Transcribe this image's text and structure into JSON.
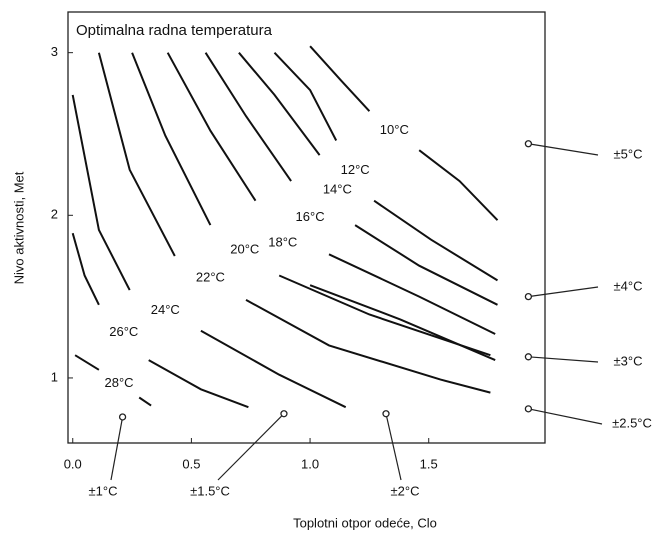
{
  "chart_data": {
    "type": "line",
    "title": "Optimalna radna temperatura",
    "x_label": "Toplotni otpor odeće, Clo",
    "y_label": "Nivo aktivnosti, Met",
    "xlim": [
      -0.02,
      1.99
    ],
    "ylim": [
      0.6,
      3.25
    ],
    "xticks": [
      {
        "value": 0,
        "label": "0.0"
      },
      0.5,
      {
        "value": 1,
        "label": "1.0"
      },
      1.5
    ],
    "yticks": [
      1,
      2,
      3
    ],
    "series": [
      {
        "name": "10°C",
        "color": "#111111",
        "x": [
          1.0,
          1.13,
          1.25,
          null,
          1.46,
          1.63,
          1.79
        ],
        "values": [
          3.04,
          2.83,
          2.64,
          null,
          2.4,
          2.21,
          1.97
        ]
      },
      {
        "name": "12°C",
        "color": "#111111",
        "x": [
          0.85,
          1.0,
          1.11,
          null,
          1.27,
          1.51,
          1.79
        ],
        "values": [
          3.0,
          2.77,
          2.46,
          null,
          2.09,
          1.85,
          1.6
        ]
      },
      {
        "name": "14°C",
        "color": "#111111",
        "x": [
          0.7,
          0.85,
          1.04,
          null,
          1.19,
          1.46,
          1.79
        ],
        "values": [
          3.0,
          2.74,
          2.37,
          null,
          1.94,
          1.69,
          1.45
        ]
      },
      {
        "name": "16°C",
        "color": "#111111",
        "x": [
          0.56,
          0.73,
          0.92,
          null,
          1.08,
          1.46,
          1.78
        ],
        "values": [
          3.0,
          2.61,
          2.21,
          null,
          1.76,
          1.5,
          1.27
        ]
      },
      {
        "name": "18°C",
        "color": "#111111",
        "x": [
          0.4,
          0.58,
          0.77,
          null,
          1.0,
          1.38,
          1.78
        ],
        "values": [
          3.0,
          2.52,
          2.09,
          null,
          1.57,
          1.36,
          1.11
        ]
      },
      {
        "name": "20°C",
        "color": "#111111",
        "x": [
          0.25,
          0.39,
          0.58,
          null,
          0.87,
          1.25,
          1.76
        ],
        "values": [
          3.0,
          2.49,
          1.94,
          null,
          1.63,
          1.39,
          1.14
        ]
      },
      {
        "name": "22°C",
        "color": "#111111",
        "x": [
          0.11,
          0.24,
          0.43,
          null,
          0.73,
          1.08,
          1.55,
          1.76
        ],
        "values": [
          3.0,
          2.28,
          1.75,
          null,
          1.48,
          1.2,
          0.99,
          0.91
        ]
      },
      {
        "name": "24°C",
        "color": "#111111",
        "x": [
          0.0,
          0.11,
          0.24,
          null,
          0.54,
          0.87,
          1.15
        ],
        "values": [
          2.74,
          1.91,
          1.54,
          null,
          1.29,
          1.02,
          0.82
        ]
      },
      {
        "name": "26°C",
        "color": "#111111",
        "x": [
          0.0,
          0.05,
          0.11,
          null,
          0.32,
          0.54,
          0.74
        ],
        "values": [
          1.89,
          1.63,
          1.45,
          null,
          1.11,
          0.93,
          0.82
        ]
      },
      {
        "name": "28°C",
        "color": "#111111",
        "x": [
          0.01,
          0.11,
          null,
          0.28,
          0.33
        ],
        "values": [
          1.14,
          1.05,
          null,
          0.88,
          0.83
        ]
      }
    ],
    "annotations": [
      {
        "text": "±5°C",
        "x": 1.92,
        "y": 2.44
      },
      {
        "text": "±4°C",
        "x": 1.92,
        "y": 1.5
      },
      {
        "text": "±3°C",
        "x": 1.92,
        "y": 1.13
      },
      {
        "text": "±2.5°C",
        "x": 1.92,
        "y": 0.81
      },
      {
        "text": "±1°C",
        "x": 0.21,
        "y": 0.76
      },
      {
        "text": "±1.5°C",
        "x": 0.89,
        "y": 0.78
      },
      {
        "text": "±2°C",
        "x": 1.32,
        "y": 0.78
      }
    ]
  }
}
